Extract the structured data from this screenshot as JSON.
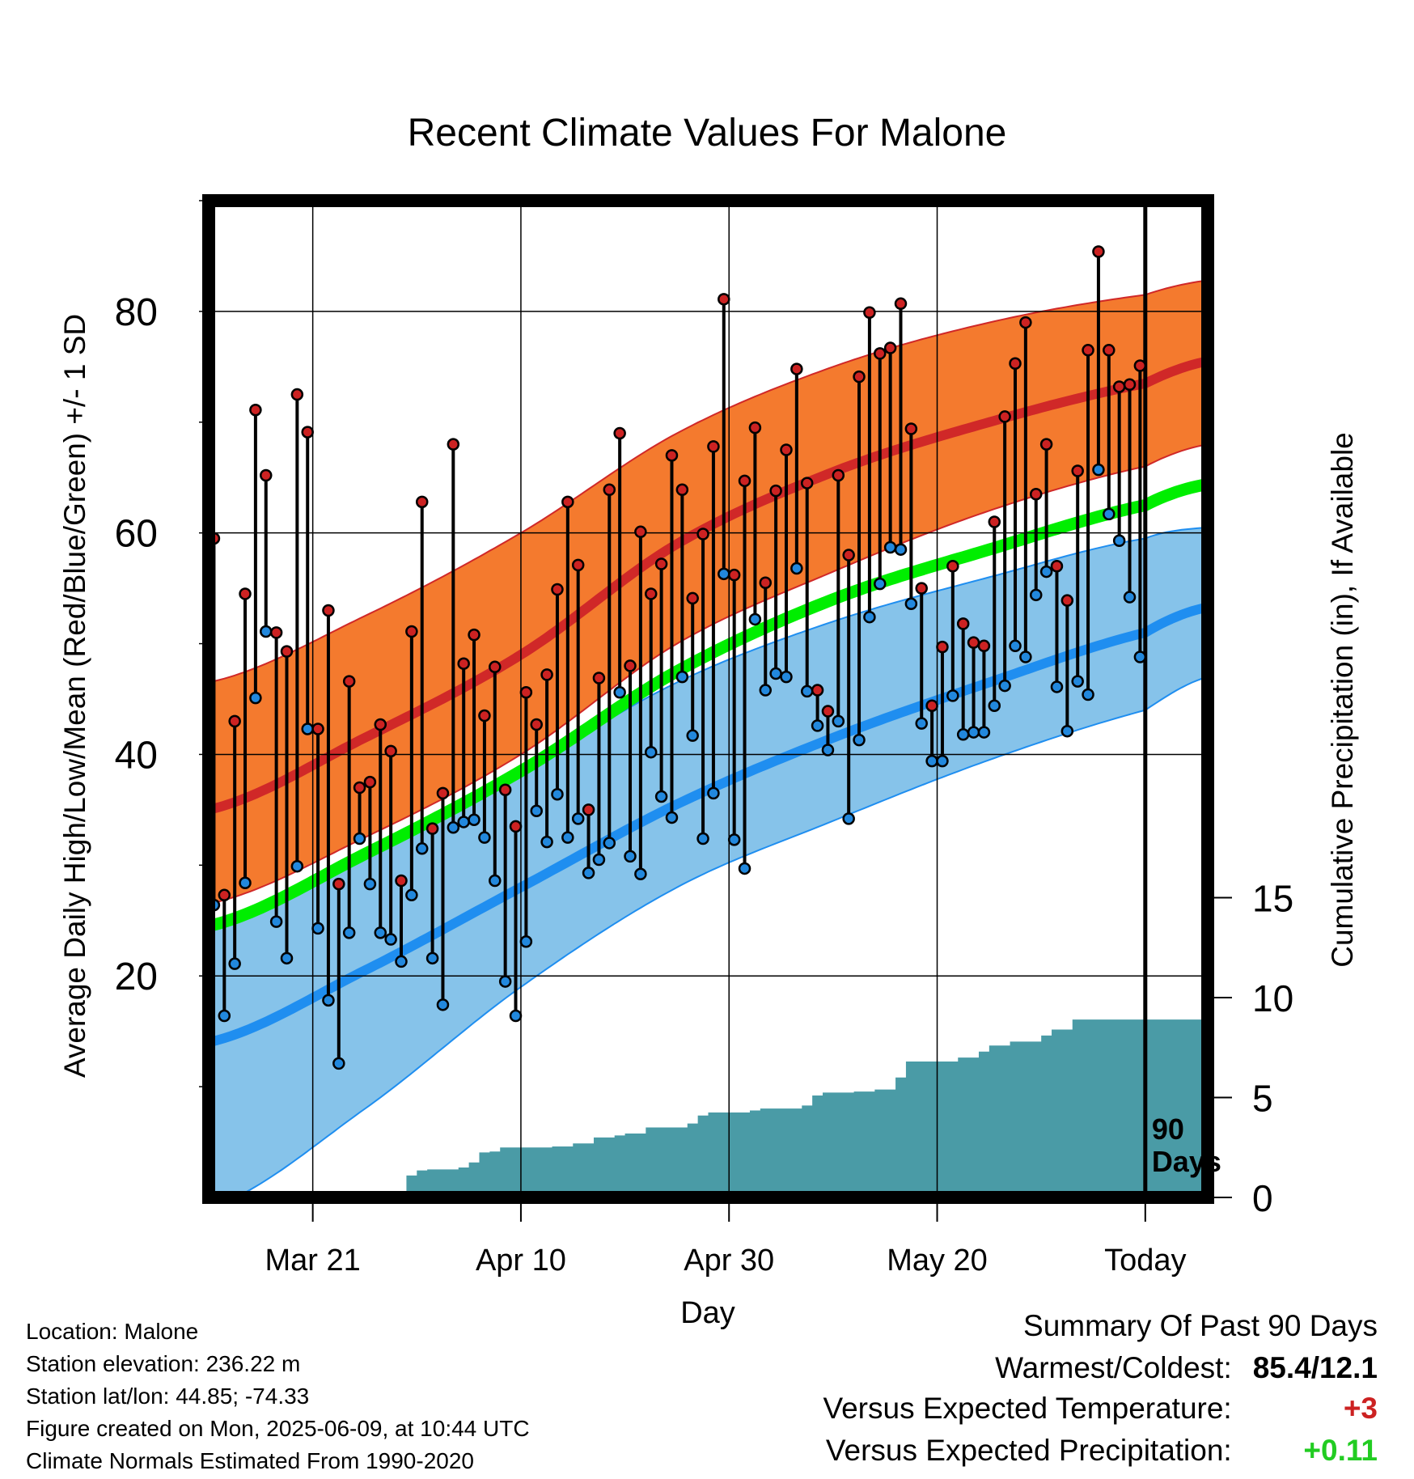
{
  "chart_data": {
    "type": "line",
    "title": "Recent Climate Values For Malone",
    "xlabel": "Day",
    "ylabel": "Average Daily High/Low/Mean (Red/Blue/Green) +/- 1 SD",
    "y2label": "Cumulative Precipitation (in), If Available",
    "x_start": "2025-03-11",
    "x_end": "2025-06-15",
    "today": "2025-06-09",
    "xticks": [
      {
        "date": "2025-03-21",
        "label": "Mar 21"
      },
      {
        "date": "2025-04-10",
        "label": "Apr 10"
      },
      {
        "date": "2025-04-30",
        "label": "Apr 30"
      },
      {
        "date": "2025-05-20",
        "label": "May 20"
      },
      {
        "date": "2025-06-09",
        "label": "Today"
      }
    ],
    "ylim": [
      0,
      90
    ],
    "yticks": [
      20,
      40,
      60,
      80
    ],
    "y2lim": [
      0,
      15
    ],
    "y2ticks": [
      0,
      5,
      10,
      15
    ],
    "today_label": [
      "90",
      "Days"
    ],
    "colors": {
      "high_band": "#f47a2e",
      "high_mean": "#d02828",
      "low_band": "#86c3ea",
      "low_mean": "#1f8ef0",
      "mean": "#00ee00",
      "precip": "#4a9ba6",
      "high_dot": "#cc2222",
      "low_dot": "#2288dd"
    },
    "normals": {
      "dates": [
        "2025-03-11",
        "2025-03-26",
        "2025-04-10",
        "2025-04-25",
        "2025-05-10",
        "2025-05-25",
        "2025-06-09",
        "2025-06-15"
      ],
      "high_mean": [
        35,
        41.5,
        49,
        59,
        65.5,
        70,
        73.5,
        75.5
      ],
      "high_upper": [
        46.5,
        52.5,
        60,
        69,
        75,
        79,
        81.5,
        82.8
      ],
      "high_lower": [
        26.5,
        32.5,
        40,
        50,
        56.5,
        62,
        66,
        68
      ],
      "low_mean": [
        14,
        20.5,
        28,
        35.5,
        41.5,
        46.5,
        51,
        53.3
      ],
      "low_upper": [
        24.5,
        31,
        38.5,
        46.5,
        52,
        56,
        59.5,
        60.5
      ],
      "low_lower": [
        -1,
        8,
        19,
        28,
        34,
        39.5,
        44,
        47
      ],
      "mean": [
        24.5,
        31,
        38.5,
        47.5,
        54,
        58.5,
        62.5,
        64.4
      ]
    },
    "daily": {
      "start_date": "2025-03-11",
      "high": [
        59.5,
        27.3,
        43,
        54.5,
        71.1,
        65.2,
        51,
        49.3,
        72.5,
        69.1,
        42.3,
        53,
        28.3,
        46.6,
        37,
        37.5,
        42.7,
        40.3,
        28.6,
        51.1,
        62.8,
        33.3,
        36.5,
        68,
        48.2,
        50.8,
        43.5,
        47.9,
        36.8,
        33.5,
        45.6,
        42.7,
        47.2,
        54.9,
        62.8,
        57.1,
        35,
        46.9,
        63.9,
        69,
        48,
        60.1,
        54.5,
        57.2,
        67,
        63.9,
        54.1,
        59.9,
        67.8,
        81.1,
        56.2,
        64.7,
        69.5,
        55.5,
        63.8,
        67.5,
        74.8,
        64.5,
        45.8,
        43.9,
        65.2,
        58,
        74.1,
        79.9,
        76.2,
        76.7,
        80.7,
        69.4,
        55,
        44.4,
        49.7,
        57,
        51.8,
        50.1,
        49.8,
        61,
        70.5,
        75.3,
        79,
        63.5,
        68,
        57,
        53.9,
        65.6,
        76.5,
        85.4,
        76.5,
        73.2,
        73.4,
        75.1
      ],
      "low": [
        26.4,
        16.4,
        21.1,
        28.4,
        45.1,
        51.1,
        24.9,
        21.6,
        29.9,
        42.3,
        24.3,
        17.8,
        12.1,
        23.9,
        32.4,
        28.3,
        23.9,
        23.3,
        21.3,
        27.3,
        31.5,
        21.6,
        17.4,
        33.4,
        33.9,
        34.1,
        32.5,
        28.6,
        19.5,
        16.4,
        23.1,
        34.9,
        32.1,
        36.4,
        32.5,
        34.2,
        29.3,
        30.5,
        32,
        45.6,
        30.8,
        29.2,
        40.2,
        36.2,
        34.3,
        47,
        41.7,
        32.4,
        36.5,
        56.3,
        32.3,
        29.7,
        52.2,
        45.8,
        47.3,
        47,
        56.8,
        45.7,
        42.6,
        40.4,
        43,
        34.2,
        41.3,
        52.4,
        55.4,
        58.7,
        58.5,
        53.6,
        42.8,
        39.4,
        39.4,
        45.3,
        41.8,
        42,
        42,
        44.4,
        46.2,
        49.8,
        48.8,
        54.4,
        56.5,
        46.1,
        42.1,
        46.6,
        45.4,
        65.7,
        61.7,
        59.3,
        54.2,
        48.8
      ]
    },
    "precip": {
      "dates": [
        "2025-03-11",
        "2025-03-24",
        "2025-03-27",
        "2025-03-30",
        "2025-03-31",
        "2025-04-01",
        "2025-04-04",
        "2025-04-05",
        "2025-04-06",
        "2025-04-07",
        "2025-04-08",
        "2025-04-13",
        "2025-04-15",
        "2025-04-17",
        "2025-04-19",
        "2025-04-20",
        "2025-04-22",
        "2025-04-26",
        "2025-04-27",
        "2025-04-28",
        "2025-05-02",
        "2025-05-03",
        "2025-05-07",
        "2025-05-08",
        "2025-05-09",
        "2025-05-12",
        "2025-05-14",
        "2025-05-16",
        "2025-05-17",
        "2025-05-22",
        "2025-05-24",
        "2025-05-25",
        "2025-05-27",
        "2025-05-30",
        "2025-05-31",
        "2025-06-02",
        "2025-06-15"
      ],
      "cumulative": [
        0,
        0.15,
        0.3,
        1.1,
        1.35,
        1.4,
        1.5,
        1.75,
        2.25,
        2.3,
        2.5,
        2.55,
        2.7,
        3.0,
        3.1,
        3.2,
        3.5,
        3.7,
        4.1,
        4.25,
        4.35,
        4.45,
        4.6,
        5.1,
        5.25,
        5.3,
        5.4,
        6.0,
        6.8,
        7.0,
        7.3,
        7.6,
        7.8,
        8.1,
        8.4,
        8.9,
        8.9
      ]
    }
  },
  "info": {
    "location": "Location: Malone",
    "elevation": "Station elevation: 236.22 m",
    "latlon": "Station lat/lon: 44.85; -74.33",
    "created": "Figure created on Mon, 2025-06-09, at 10:44 UTC",
    "normals": "Climate Normals Estimated From 1990-2020"
  },
  "summary": {
    "title": "Summary Of Past 90 Days",
    "warmest_label": "Warmest/Coldest:",
    "warmest_value": "85.4/12.1",
    "temp_label": "Versus Expected Temperature:",
    "temp_value": "+3",
    "temp_color": "#cc2222",
    "precip_label": "Versus Expected Precipitation:",
    "precip_value": "+0.11",
    "precip_color": "#22cc22"
  }
}
